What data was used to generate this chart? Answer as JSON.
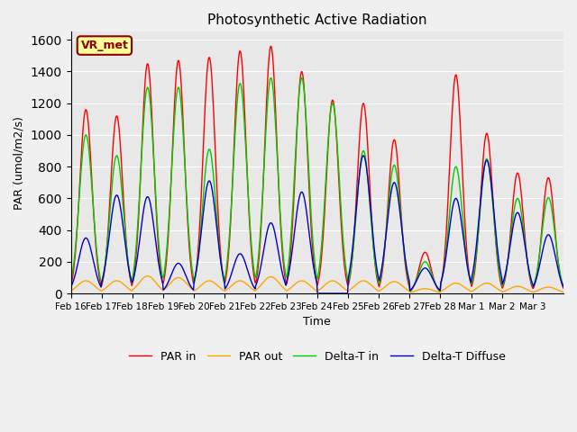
{
  "title": "Photosynthetic Active Radiation",
  "ylabel": "PAR (umol/m2/s)",
  "xlabel": "Time",
  "xlabels": [
    "Feb 16",
    "Feb 17",
    "Feb 18",
    "Feb 19",
    "Feb 20",
    "Feb 21",
    "Feb 22",
    "Feb 23",
    "Feb 24",
    "Feb 25",
    "Feb 26",
    "Feb 27",
    "Feb 28",
    "Mar 1",
    "Mar 2",
    "Mar 3"
  ],
  "ylim": [
    0,
    1650
  ],
  "yticks": [
    0,
    200,
    400,
    600,
    800,
    1000,
    1200,
    1400,
    1600
  ],
  "colors": {
    "par_in": "#FF0000",
    "par_out": "#FFA500",
    "delta_t_in": "#00CC00",
    "delta_t_diffuse": "#0000CC"
  },
  "background_color": "#E8E8E8",
  "fig_color": "#F0F0F0",
  "watermark_text": "VR_met",
  "watermark_color": "#8B0000",
  "watermark_bg": "#FFFF99",
  "legend_labels": [
    "PAR in",
    "PAR out",
    "Delta-T in",
    "Delta-T Diffuse"
  ],
  "n_days": 16,
  "day_peaks_par_in": [
    1160,
    1120,
    1450,
    1470,
    1490,
    1530,
    1560,
    1400,
    1220,
    1200,
    970,
    260,
    1380,
    1010,
    760,
    730
  ],
  "day_peaks_par_out": [
    80,
    80,
    110,
    100,
    80,
    80,
    105,
    80,
    80,
    80,
    75,
    30,
    65,
    65,
    45,
    40
  ],
  "day_peaks_delta_t": [
    1000,
    870,
    1300,
    1300,
    910,
    1325,
    1360,
    1360,
    1200,
    900,
    810,
    200,
    800,
    850,
    600,
    605
  ],
  "day_peaks_diffuse": [
    350,
    620,
    610,
    190,
    710,
    250,
    445,
    640,
    0,
    870,
    700,
    160,
    600,
    840,
    510,
    370
  ]
}
